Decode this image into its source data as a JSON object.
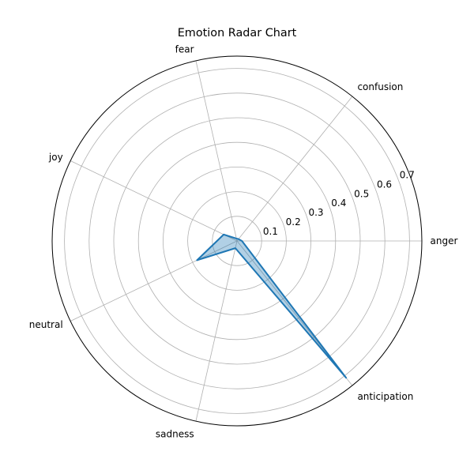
{
  "chart_data": {
    "type": "radar",
    "title": "Emotion Radar Chart",
    "categories": [
      "anger",
      "confusion",
      "fear",
      "joy",
      "neutral",
      "sadness",
      "anticipation"
    ],
    "series": [
      {
        "values": [
          0.02,
          0.01,
          0.01,
          0.06,
          0.18,
          0.03,
          0.71
        ]
      }
    ],
    "radial_ticks": [
      "0.1",
      "0.2",
      "0.3",
      "0.4",
      "0.5",
      "0.6",
      "0.7"
    ],
    "radial_tick_values": [
      0.1,
      0.2,
      0.3,
      0.4,
      0.5,
      0.6,
      0.7
    ],
    "rlim": [
      0,
      0.75
    ],
    "grid": true,
    "colors": {
      "line": "#1f77b4",
      "fill": "#1f77b4"
    }
  }
}
